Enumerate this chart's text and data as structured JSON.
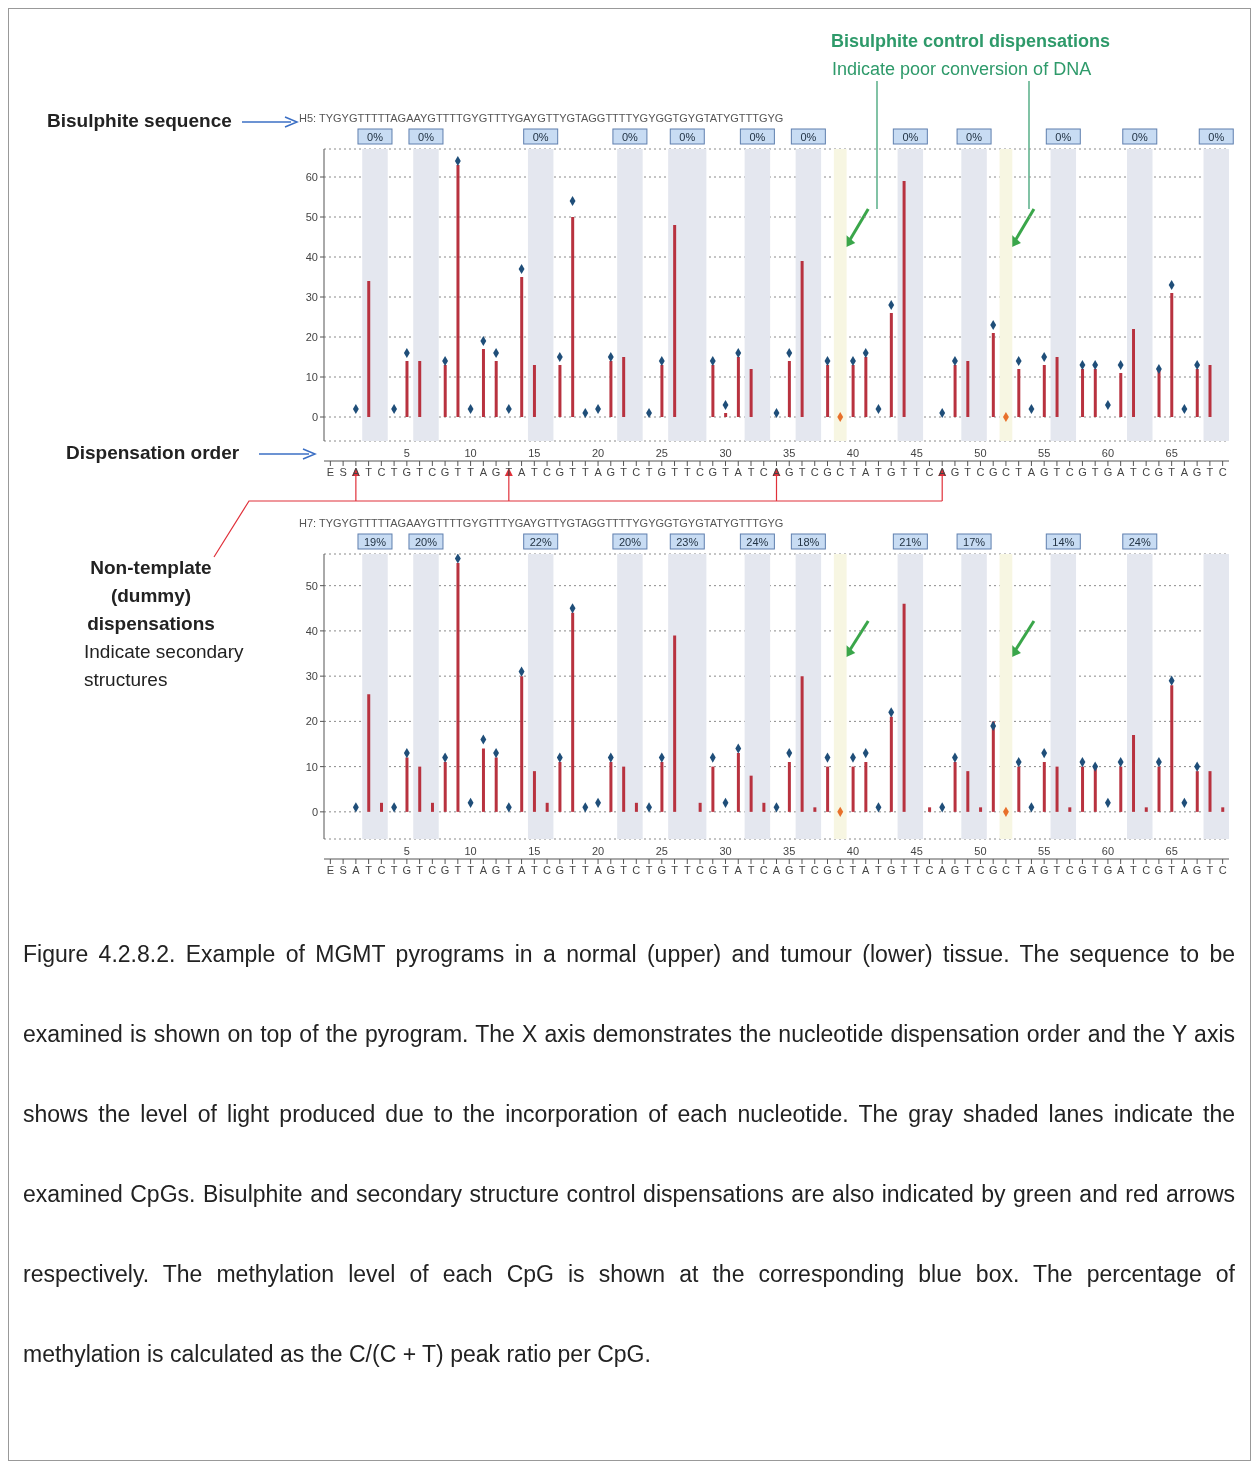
{
  "chart_data": [
    {
      "type": "bar",
      "title": "H5: TYGYGTTTTTAGAAYGTTTTGYGTTTYGAYGTTYGTAGGTTTTYGYGGTGYGTATYGTTTGYG",
      "categories": [
        "E",
        "S",
        "A",
        "T",
        "C",
        "T",
        "G",
        "T",
        "C",
        "G",
        "T",
        "T",
        "A",
        "G",
        "T",
        "A",
        "T",
        "C",
        "G",
        "T",
        "T",
        "A",
        "G",
        "T",
        "C",
        "T",
        "G",
        "T",
        "T",
        "C",
        "G",
        "T",
        "A",
        "T",
        "C",
        "A",
        "G",
        "T",
        "C",
        "G",
        "C",
        "T",
        "A",
        "T",
        "G",
        "T",
        "T",
        "C",
        "A",
        "G",
        "T",
        "C",
        "G",
        "C",
        "T",
        "A",
        "G",
        "T",
        "C",
        "G",
        "T",
        "G",
        "A",
        "T",
        "C",
        "G",
        "T",
        "A",
        "G",
        "T",
        "C"
      ],
      "x2lim": [
        -1.5,
        69.5
      ],
      "x2ticks": [
        5,
        10,
        15,
        20,
        25,
        30,
        35,
        40,
        45,
        50,
        55,
        60,
        65
      ],
      "ylim": [
        -6,
        67
      ],
      "yticks": [
        0,
        10,
        20,
        30,
        40,
        50,
        60
      ],
      "grid": "y",
      "series": [
        {
          "color": "#b8323f",
          "values": [
            null,
            null,
            null,
            34,
            null,
            null,
            14,
            14,
            null,
            13,
            63,
            null,
            17,
            14,
            null,
            35,
            13,
            null,
            13,
            50,
            null,
            null,
            14,
            15,
            null,
            null,
            13,
            48,
            null,
            null,
            13,
            1,
            15,
            12,
            null,
            null,
            14,
            39,
            null,
            13,
            null,
            13,
            15,
            null,
            26,
            59,
            null,
            null,
            null,
            13,
            14,
            null,
            21,
            null,
            12,
            null,
            13,
            15,
            null,
            12,
            12,
            null,
            11,
            22,
            null,
            12,
            31,
            null,
            12,
            13,
            null
          ]
        },
        {
          "type": "scatter",
          "marker": "diamond",
          "color": "#1f4e79",
          "values": [
            null,
            null,
            2,
            null,
            null,
            2,
            16,
            null,
            null,
            14,
            64,
            2,
            19,
            16,
            2,
            37,
            null,
            null,
            15,
            54,
            1,
            2,
            15,
            null,
            null,
            1,
            14,
            null,
            null,
            null,
            14,
            3,
            16,
            null,
            null,
            1,
            16,
            null,
            null,
            14,
            null,
            14,
            16,
            2,
            28,
            null,
            null,
            null,
            1,
            14,
            null,
            null,
            23,
            null,
            14,
            2,
            15,
            null,
            null,
            13,
            13,
            3,
            13,
            null,
            null,
            12,
            33,
            2,
            13,
            null,
            null
          ]
        },
        {
          "type": "scatter",
          "marker": "diamond",
          "color": "#e8702a",
          "values": [
            null,
            null,
            null,
            null,
            null,
            null,
            null,
            null,
            null,
            null,
            null,
            null,
            null,
            null,
            null,
            null,
            null,
            null,
            null,
            null,
            null,
            null,
            null,
            null,
            null,
            null,
            null,
            null,
            null,
            null,
            null,
            null,
            null,
            null,
            null,
            null,
            null,
            null,
            null,
            null,
            0,
            null,
            null,
            null,
            null,
            null,
            null,
            null,
            null,
            null,
            null,
            null,
            null,
            0,
            null,
            null,
            null,
            null,
            null,
            null,
            null,
            null,
            null,
            null,
            null,
            null,
            null,
            null,
            null,
            null,
            null
          ]
        }
      ],
      "bands": [
        {
          "axis": "x2",
          "from": 1.5,
          "to": 3.5,
          "label": "0%",
          "color": "#e4e7ef"
        },
        {
          "axis": "x2",
          "from": 5.5,
          "to": 7.5,
          "label": "0%",
          "color": "#e4e7ef"
        },
        {
          "axis": "x2",
          "from": 14.5,
          "to": 16.5,
          "label": "0%",
          "color": "#e4e7ef"
        },
        {
          "axis": "x2",
          "from": 21.5,
          "to": 23.5,
          "label": "0%",
          "color": "#e4e7ef"
        },
        {
          "axis": "x2",
          "from": 25.5,
          "to": 28.5,
          "label": "0%",
          "color": "#e4e7ef"
        },
        {
          "axis": "x2",
          "from": 31.5,
          "to": 33.5,
          "label": "0%",
          "color": "#e4e7ef"
        },
        {
          "axis": "x2",
          "from": 35.5,
          "to": 37.5,
          "label": "0%",
          "color": "#e4e7ef"
        },
        {
          "axis": "x2",
          "from": 43.5,
          "to": 45.5,
          "label": "0%",
          "color": "#e4e7ef"
        },
        {
          "axis": "x2",
          "from": 48.5,
          "to": 50.5,
          "label": "0%",
          "color": "#e4e7ef"
        },
        {
          "axis": "x2",
          "from": 55.5,
          "to": 57.5,
          "label": "0%",
          "color": "#e4e7ef"
        },
        {
          "axis": "x2",
          "from": 61.5,
          "to": 63.5,
          "label": "0%",
          "color": "#e4e7ef"
        },
        {
          "axis": "x2",
          "from": 67.5,
          "to": 69.5,
          "label": "0%",
          "color": "#e4e7ef"
        },
        {
          "axis": "x2",
          "from": 38.5,
          "to": 39.5,
          "color": "#f7f6e2"
        },
        {
          "axis": "x2",
          "from": 51.5,
          "to": 52.5,
          "color": "#f7f6e2"
        }
      ],
      "annotations": [
        "Bisulphite sequence",
        "Dispensation order",
        "Bisulphite control dispensations",
        "Indicate poor conversion of DNA",
        "Non-template (dummy) dispensations",
        "Indicate secondary structures"
      ]
    },
    {
      "type": "bar",
      "title": "H7: TYGYGTTTTTAGAAYGTTTTGYGTTTYGAYGTTYGTAGGTTTTYGYGGTGYGTATYGTTTGYG",
      "categories": [
        "E",
        "S",
        "A",
        "T",
        "C",
        "T",
        "G",
        "T",
        "C",
        "G",
        "T",
        "T",
        "A",
        "G",
        "T",
        "A",
        "T",
        "C",
        "G",
        "T",
        "T",
        "A",
        "G",
        "T",
        "C",
        "T",
        "G",
        "T",
        "T",
        "C",
        "G",
        "T",
        "A",
        "T",
        "C",
        "A",
        "G",
        "T",
        "C",
        "G",
        "C",
        "T",
        "A",
        "T",
        "G",
        "T",
        "T",
        "C",
        "A",
        "G",
        "T",
        "C",
        "G",
        "C",
        "T",
        "A",
        "G",
        "T",
        "C",
        "G",
        "T",
        "G",
        "A",
        "T",
        "C",
        "G",
        "T",
        "A",
        "G",
        "T",
        "C"
      ],
      "x2lim": [
        -1.5,
        69.5
      ],
      "x2ticks": [
        5,
        10,
        15,
        20,
        25,
        30,
        35,
        40,
        45,
        50,
        55,
        60,
        65
      ],
      "ylim": [
        -6,
        57
      ],
      "yticks": [
        0,
        10,
        20,
        30,
        40,
        50
      ],
      "grid": "y",
      "series": [
        {
          "color": "#b8323f",
          "values": [
            null,
            null,
            null,
            26,
            2,
            null,
            12,
            10,
            2,
            11,
            55,
            null,
            14,
            12,
            null,
            30,
            9,
            2,
            11,
            44,
            null,
            null,
            11,
            10,
            2,
            null,
            11,
            39,
            null,
            2,
            10,
            null,
            13,
            8,
            2,
            null,
            11,
            30,
            1,
            10,
            null,
            10,
            11,
            null,
            21,
            46,
            null,
            1,
            null,
            11,
            9,
            1,
            20,
            null,
            10,
            null,
            11,
            10,
            1,
            10,
            10,
            null,
            10,
            17,
            1,
            10,
            28,
            null,
            9,
            9,
            1
          ]
        },
        {
          "type": "scatter",
          "marker": "diamond",
          "color": "#1f4e79",
          "values": [
            null,
            null,
            1,
            null,
            null,
            1,
            13,
            null,
            null,
            12,
            56,
            2,
            16,
            13,
            1,
            31,
            null,
            null,
            12,
            45,
            1,
            2,
            12,
            null,
            null,
            1,
            12,
            null,
            null,
            null,
            12,
            2,
            14,
            null,
            null,
            1,
            13,
            null,
            null,
            12,
            null,
            12,
            13,
            1,
            22,
            null,
            null,
            null,
            1,
            12,
            null,
            null,
            19,
            null,
            11,
            1,
            13,
            null,
            null,
            11,
            10,
            2,
            11,
            null,
            null,
            11,
            29,
            2,
            10,
            null,
            null
          ]
        },
        {
          "type": "scatter",
          "marker": "diamond",
          "color": "#e8702a",
          "values": [
            null,
            null,
            null,
            null,
            null,
            null,
            null,
            null,
            null,
            null,
            null,
            null,
            null,
            null,
            null,
            null,
            null,
            null,
            null,
            null,
            null,
            null,
            null,
            null,
            null,
            null,
            null,
            null,
            null,
            null,
            null,
            null,
            null,
            null,
            null,
            null,
            null,
            null,
            null,
            null,
            0,
            null,
            null,
            null,
            null,
            null,
            null,
            null,
            null,
            null,
            null,
            null,
            null,
            0,
            null,
            null,
            null,
            null,
            null,
            null,
            null,
            null,
            null,
            null,
            null,
            null,
            null,
            null,
            null,
            null,
            null
          ]
        }
      ],
      "bands": [
        {
          "axis": "x2",
          "from": 1.5,
          "to": 3.5,
          "label": "19%",
          "color": "#e4e7ef"
        },
        {
          "axis": "x2",
          "from": 5.5,
          "to": 7.5,
          "label": "20%",
          "color": "#e4e7ef"
        },
        {
          "axis": "x2",
          "from": 14.5,
          "to": 16.5,
          "label": "22%",
          "color": "#e4e7ef"
        },
        {
          "axis": "x2",
          "from": 21.5,
          "to": 23.5,
          "label": "20%",
          "color": "#e4e7ef"
        },
        {
          "axis": "x2",
          "from": 25.5,
          "to": 28.5,
          "label": "23%",
          "color": "#e4e7ef"
        },
        {
          "axis": "x2",
          "from": 31.5,
          "to": 33.5,
          "label": "24%",
          "color": "#e4e7ef"
        },
        {
          "axis": "x2",
          "from": 35.5,
          "to": 37.5,
          "label": "18%",
          "color": "#e4e7ef"
        },
        {
          "axis": "x2",
          "from": 43.5,
          "to": 45.5,
          "label": "21%",
          "color": "#e4e7ef"
        },
        {
          "axis": "x2",
          "from": 48.5,
          "to": 50.5,
          "label": "17%",
          "color": "#e4e7ef"
        },
        {
          "axis": "x2",
          "from": 55.5,
          "to": 57.5,
          "label": "14%",
          "color": "#e4e7ef"
        },
        {
          "axis": "x2",
          "from": 61.5,
          "to": 63.5,
          "label": "24%",
          "color": "#e4e7ef"
        },
        {
          "axis": "x2",
          "from": 67.5,
          "to": 69.5,
          "color": "#e4e7ef"
        },
        {
          "axis": "x2",
          "from": 38.5,
          "to": 39.5,
          "color": "#f7f6e2"
        },
        {
          "axis": "x2",
          "from": 51.5,
          "to": 52.5,
          "color": "#f7f6e2"
        }
      ],
      "annotations": [
        "Figure 4.2.8.2. Example of MGMT pyrograms in a normal (upper) and tumour (lower) tissue. The sequence to be examined is shown on top of the pyrogram. The X axis demonstrates the nucleotide dispensation order and the Y axis shows the level of light produced due to the incorporation of each nucleotide. The gray shaded lanes indicate the examined CpGs. Bisulphite and secondary structure control dispensations are also indicated by green and red arrows respectively. The methylation level of each CpG is shown at the corresponding blue box. The percentage of methylation is calculated as the C/(C + T) peak ratio per CpG."
      ]
    }
  ]
}
